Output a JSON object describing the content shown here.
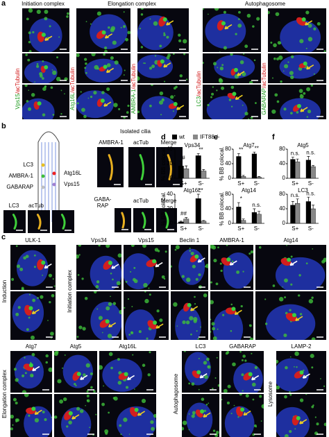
{
  "panel_a": {
    "letter": "a",
    "headings": [
      "Initiation complex",
      "Elongation complex",
      "Autophagosome"
    ],
    "stains": [
      {
        "protein": "Vps15",
        "marker": "/acTubulin"
      },
      {
        "protein": "Atg16L",
        "marker": "/acTubulin"
      },
      {
        "protein": "AMBRA-1",
        "marker": "/acTubulin"
      },
      {
        "protein": "LC3",
        "marker": "/acTubulin"
      },
      {
        "protein": "GABARAP",
        "marker": "/acTubulin"
      }
    ]
  },
  "panel_b": {
    "letter": "b",
    "cilium_labels": [
      "LC3",
      "AMBRA-1",
      "GABARAP",
      "Atg16L",
      "Vps15"
    ],
    "heading": "Isolated cilia",
    "row1": [
      "AMBRA-1",
      "acTub",
      "Merge"
    ],
    "row2": [
      "GABA-",
      "RAP",
      "acTub",
      "Merge"
    ],
    "row3": [
      "LC3",
      "acTub"
    ]
  },
  "letters": [
    "d",
    "e",
    "f"
  ],
  "legend": [
    {
      "name": "wt",
      "color": "#000000"
    },
    {
      "name": "IFT88-/-",
      "color": "#888888"
    }
  ],
  "chart_data": [
    {
      "type": "bar",
      "title": "Vps34",
      "ylabel": "% BB colocal.",
      "categories": [
        "S+",
        "S-"
      ],
      "ylim": [
        0,
        40
      ],
      "yticks": [
        0,
        20,
        40
      ],
      "series": [
        {
          "color": "#000000",
          "values": [
            17,
            31
          ],
          "errors": [
            6,
            3
          ]
        },
        {
          "color": "#888888",
          "values": [
            13,
            10
          ],
          "errors": [
            4,
            2
          ]
        }
      ],
      "annotations": [
        "#",
        "**"
      ]
    },
    {
      "type": "bar",
      "title": "Atg16L",
      "ylabel": "% BB colocal.",
      "categories": [
        "S+",
        "S-"
      ],
      "ylim": [
        0,
        40
      ],
      "yticks": [
        0,
        20,
        40
      ],
      "series": [
        {
          "color": "#000000",
          "values": [
            2,
            34
          ],
          "errors": [
            1,
            6
          ]
        },
        {
          "color": "#888888",
          "values": [
            6,
            3
          ],
          "errors": [
            2,
            1
          ]
        }
      ],
      "annotations": [
        "##",
        "**"
      ]
    },
    {
      "type": "bar",
      "title": "Atg7",
      "ylabel": "% BB colocal.",
      "categories": [
        "S+",
        "S-"
      ],
      "ylim": [
        0,
        80
      ],
      "yticks": [
        0,
        40,
        80
      ],
      "series": [
        {
          "color": "#000000",
          "values": [
            60,
            67
          ],
          "errors": [
            8,
            5
          ]
        },
        {
          "color": "#888888",
          "values": [
            5,
            3
          ],
          "errors": [
            3,
            2
          ]
        }
      ],
      "annotations": [
        "**",
        "**"
      ]
    },
    {
      "type": "bar",
      "title": "Atg14",
      "ylabel": "% BB colocal.",
      "categories": [
        "S+",
        "S-"
      ],
      "ylim": [
        0,
        80
      ],
      "yticks": [
        0,
        40,
        80
      ],
      "series": [
        {
          "color": "#000000",
          "values": [
            45,
            30
          ],
          "errors": [
            12,
            10
          ]
        },
        {
          "color": "#888888",
          "values": [
            8,
            25
          ],
          "errors": [
            4,
            8
          ]
        }
      ],
      "annotations": [
        "*",
        "n.s."
      ]
    },
    {
      "type": "bar",
      "title": "Atg5",
      "categories": [
        "S+",
        "S-"
      ],
      "ylim": [
        0,
        80
      ],
      "yticks": [
        0,
        40,
        80
      ],
      "series": [
        {
          "color": "#000000",
          "values": [
            52,
            50
          ],
          "errors": [
            6,
            10
          ]
        },
        {
          "color": "#888888",
          "values": [
            45,
            32
          ],
          "errors": [
            8,
            3
          ]
        }
      ],
      "annotations": [
        "n.s.",
        "n.s."
      ]
    },
    {
      "type": "bar",
      "title": "LC3",
      "categories": [
        "S+",
        "S-"
      ],
      "ylim": [
        0,
        80
      ],
      "yticks": [
        0,
        40,
        80
      ],
      "series": [
        {
          "color": "#000000",
          "values": [
            50,
            60
          ],
          "errors": [
            10,
            12
          ]
        },
        {
          "color": "#888888",
          "values": [
            55,
            40
          ],
          "errors": [
            12,
            10
          ]
        }
      ],
      "annotations": [
        "n.s.",
        "n.s."
      ]
    }
  ],
  "panel_c": {
    "letter": "c",
    "row1": [
      "ULK-1",
      "Vps34",
      "Vps15",
      "Beclin 1",
      "AMBRA-1",
      "Atg14"
    ],
    "row1_groups": [
      "Induction",
      "Initiation complex"
    ],
    "row2": [
      "Atg7",
      "Atg5",
      "Atg16L",
      "LC3",
      "GABARAP",
      "LAMP-2"
    ],
    "row2_groups": [
      "Elongation complex",
      "Autophagosome",
      "Lysosome"
    ]
  }
}
